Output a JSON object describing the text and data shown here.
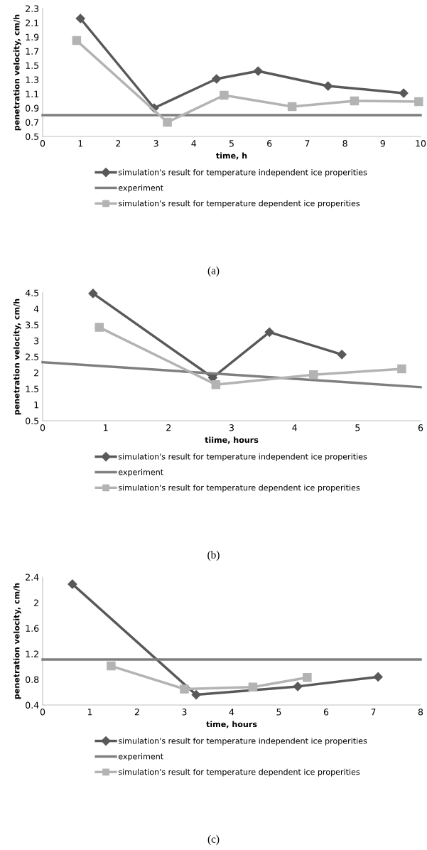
{
  "chart_data": [
    {
      "type": "line",
      "xlabel": "time, h",
      "ylabel": "penetration velocity, cm/h",
      "xlim": [
        0,
        10
      ],
      "xticks": [
        0,
        1,
        2,
        3,
        4,
        5,
        6,
        7,
        8,
        9,
        10
      ],
      "ylim": [
        0.5,
        2.3
      ],
      "yticks": [
        0.5,
        0.7,
        0.9,
        1.1,
        1.3,
        1.5,
        1.7,
        1.9,
        2.1,
        2.3
      ],
      "grid": false,
      "legend": "bottom",
      "annotations": [
        "(a)"
      ],
      "series": [
        {
          "name": "simulation's result for temperature independent ice properities",
          "color": "#595959",
          "marker": "diamond",
          "x": [
            1,
            2.95,
            4.6,
            5.7,
            7.55,
            9.55
          ],
          "values": [
            2.16,
            0.9,
            1.31,
            1.42,
            1.21,
            1.11
          ]
        },
        {
          "name": "experiment",
          "color": "#7f7f7f",
          "marker": "none",
          "x": [
            0,
            10
          ],
          "values": [
            0.8,
            0.8
          ]
        },
        {
          "name": "simulation's result for temperature dependent ice properities",
          "color": "#b3b3b3",
          "marker": "square",
          "x": [
            0.9,
            3.3,
            4.8,
            6.6,
            8.25,
            9.95
          ],
          "values": [
            1.85,
            0.7,
            1.08,
            0.92,
            1.0,
            0.99
          ]
        }
      ]
    },
    {
      "type": "line",
      "xlabel": "tiime, hours",
      "ylabel": "penetration velocity, cm/h",
      "xlim": [
        0,
        6
      ],
      "xticks": [
        0,
        1,
        2,
        3,
        4,
        5,
        6
      ],
      "ylim": [
        0.5,
        4.5
      ],
      "yticks": [
        0.5,
        1,
        1.5,
        2,
        2.5,
        3,
        3.5,
        4,
        4.5
      ],
      "grid": false,
      "legend": "bottom",
      "annotations": [
        "(b)"
      ],
      "series": [
        {
          "name": "simulation's result for temperature independent ice properities",
          "color": "#595959",
          "marker": "diamond",
          "x": [
            0.8,
            2.7,
            3.6,
            4.75
          ],
          "values": [
            4.48,
            1.85,
            3.27,
            2.57
          ]
        },
        {
          "name": "experiment",
          "color": "#7f7f7f",
          "marker": "none",
          "x": [
            0,
            6
          ],
          "values": [
            2.33,
            1.55
          ]
        },
        {
          "name": "simulation's result for temperature dependent ice properities",
          "color": "#b3b3b3",
          "marker": "square",
          "x": [
            0.9,
            2.75,
            4.3,
            5.7
          ],
          "values": [
            3.42,
            1.63,
            1.94,
            2.12
          ]
        }
      ]
    },
    {
      "type": "line",
      "xlabel": "time, hours",
      "ylabel": "penetration velocity, cm/h",
      "xlim": [
        0,
        8
      ],
      "xticks": [
        0,
        1,
        2,
        3,
        4,
        5,
        6,
        7,
        8
      ],
      "ylim": [
        0.4,
        2.4
      ],
      "yticks": [
        0.4,
        0.8,
        1.2,
        1.6,
        2,
        2.4
      ],
      "grid": false,
      "legend": "bottom",
      "annotations": [
        "(c)"
      ],
      "series": [
        {
          "name": "simulation's result for temperature independent ice properities",
          "color": "#595959",
          "marker": "diamond",
          "x": [
            0.63,
            3.25,
            5.4,
            7.1
          ],
          "values": [
            2.29,
            0.56,
            0.69,
            0.84
          ]
        },
        {
          "name": "experiment",
          "color": "#7f7f7f",
          "marker": "none",
          "x": [
            0,
            8
          ],
          "values": [
            1.11,
            1.11
          ]
        },
        {
          "name": "simulation's result for temperature dependent ice properities",
          "color": "#b3b3b3",
          "marker": "square",
          "x": [
            1.45,
            3.0,
            4.45,
            5.6
          ],
          "values": [
            1.01,
            0.65,
            0.68,
            0.83
          ]
        }
      ]
    }
  ]
}
